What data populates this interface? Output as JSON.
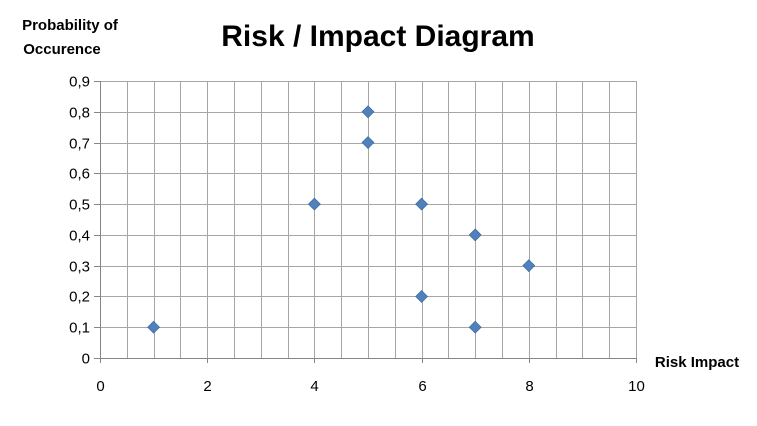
{
  "chart_data": {
    "type": "scatter",
    "title": "Risk / Impact Diagram",
    "xlabel": "Risk Impact",
    "ylabel_line1": "Probability of",
    "ylabel_line2": "Occurence",
    "xlim": [
      0,
      10
    ],
    "ylim": [
      0,
      0.9
    ],
    "x_ticks": [
      0,
      2,
      4,
      6,
      8,
      10
    ],
    "x_tick_labels": [
      "0",
      "2",
      "4",
      "6",
      "8",
      "10"
    ],
    "y_ticks": [
      0,
      0.1,
      0.2,
      0.3,
      0.4,
      0.5,
      0.6,
      0.7,
      0.8,
      0.9
    ],
    "y_tick_labels": [
      "0",
      "0,1",
      "0,2",
      "0,3",
      "0,4",
      "0,5",
      "0,6",
      "0,7",
      "0,8",
      "0,9"
    ],
    "grid": true,
    "x_grid_step": 0.5,
    "marker": "diamond",
    "marker_color": "#4f81bd",
    "grid_color": "#a6a6a6",
    "points": [
      {
        "x": 1,
        "y": 0.1
      },
      {
        "x": 4,
        "y": 0.5
      },
      {
        "x": 5,
        "y": 0.8
      },
      {
        "x": 5,
        "y": 0.7
      },
      {
        "x": 6,
        "y": 0.5
      },
      {
        "x": 6,
        "y": 0.2
      },
      {
        "x": 7,
        "y": 0.4
      },
      {
        "x": 7,
        "y": 0.1
      },
      {
        "x": 8,
        "y": 0.3
      }
    ]
  }
}
